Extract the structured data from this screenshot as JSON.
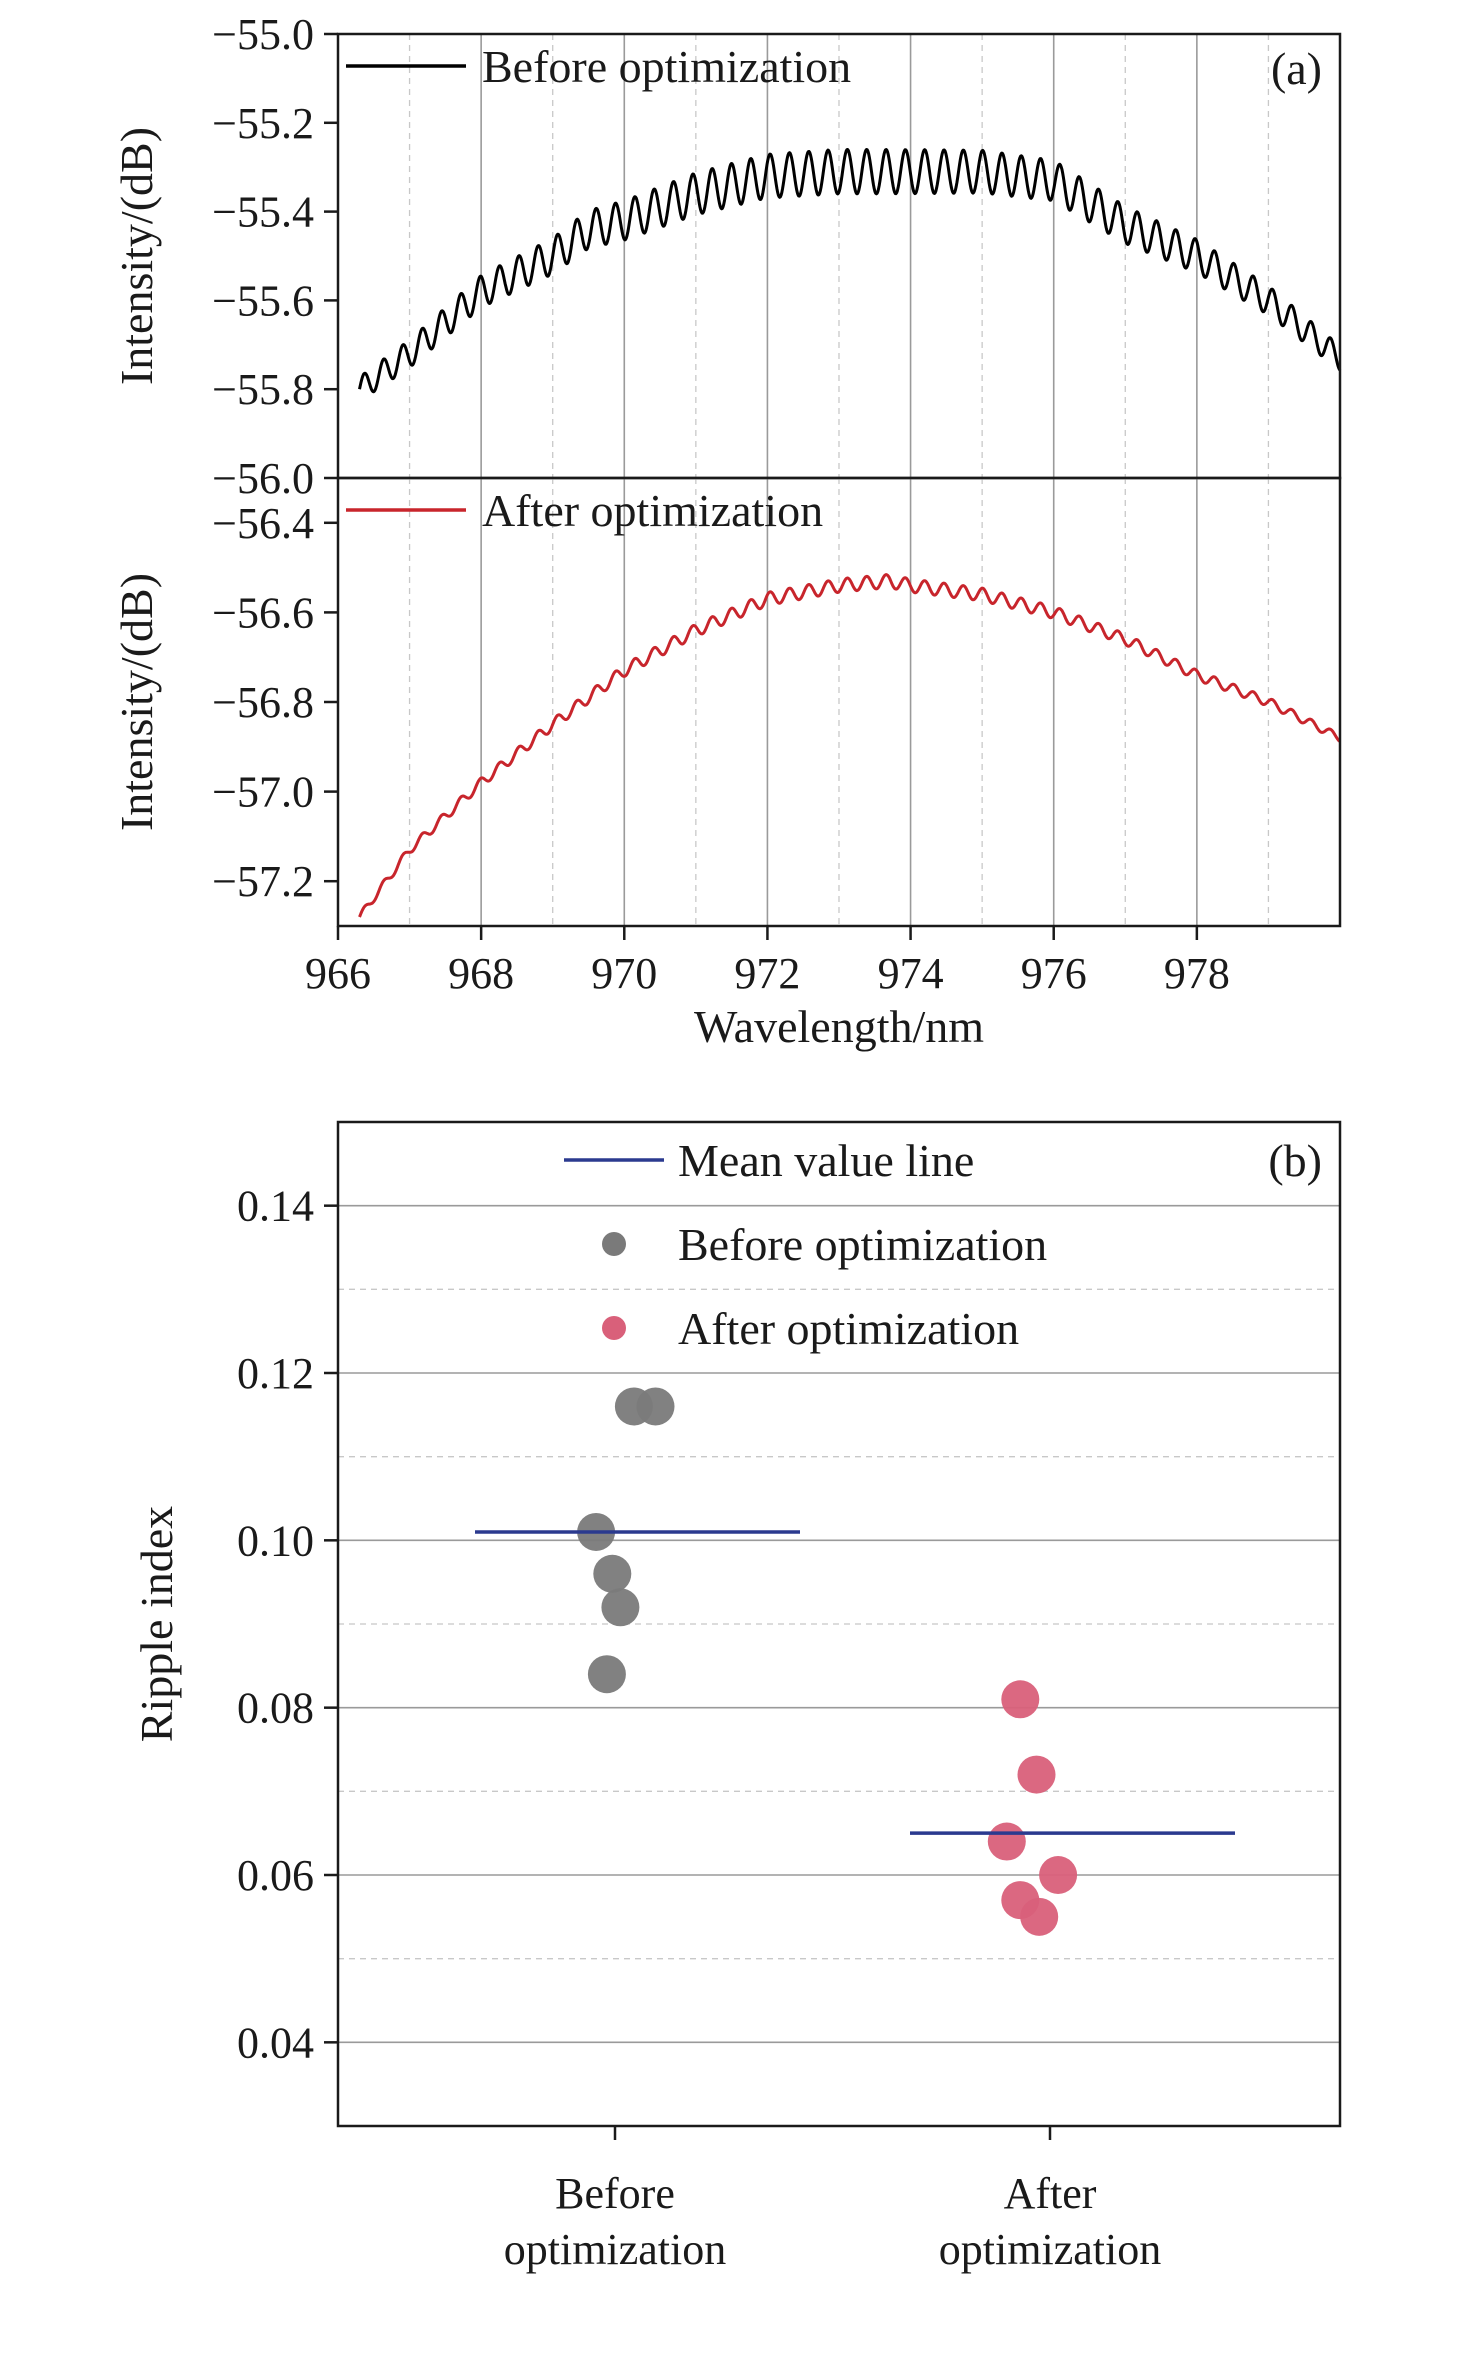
{
  "chart_data": [
    {
      "type": "line",
      "panel_label": "(a)",
      "xlabel": "Wavelength/nm",
      "xlim": [
        966,
        980
      ],
      "x_ticks": [
        "966",
        "968",
        "970",
        "972",
        "974",
        "976",
        "978"
      ],
      "grid": true,
      "subplots": [
        {
          "position": "top",
          "ylabel": "Intensity/(dB)",
          "ylim": [
            -56.0,
            -55.0
          ],
          "y_ticks": [
            "−55.0",
            "−55.2",
            "−55.4",
            "−55.6",
            "−55.8",
            "−56.0"
          ],
          "legend_placement": "top-left",
          "series": [
            {
              "name": "Before optimization",
              "color": "#000000",
              "x": [
                966.3,
                967.0,
                968.0,
                969.0,
                969.5,
                970.0,
                971.0,
                972.0,
                973.0,
                974.0,
                975.0,
                976.0,
                977.0,
                978.0,
                979.0,
                980.0
              ],
              "y": [
                -55.8,
                -55.72,
                -55.58,
                -55.5,
                -55.44,
                -55.42,
                -55.36,
                -55.32,
                -55.31,
                -55.31,
                -55.31,
                -55.33,
                -55.43,
                -55.5,
                -55.6,
                -55.73
              ],
              "ripple_amplitude": 0.05
            }
          ]
        },
        {
          "position": "bottom",
          "ylabel": "Intensity/(dB)",
          "ylim": [
            -57.3,
            -56.3
          ],
          "y_ticks": [
            "−56.4",
            "−56.6",
            "−56.8",
            "−57.0",
            "−57.2"
          ],
          "legend_placement": "top-left",
          "series": [
            {
              "name": "After optimization",
              "color": "#c8252c",
              "x": [
                966.3,
                967.0,
                968.0,
                969.0,
                970.0,
                971.0,
                972.0,
                973.0,
                973.7,
                974.0,
                975.0,
                976.0,
                977.0,
                978.0,
                979.0,
                980.0
              ],
              "y": [
                -57.28,
                -57.13,
                -56.98,
                -56.85,
                -56.73,
                -56.64,
                -56.57,
                -56.54,
                -56.53,
                -56.54,
                -56.56,
                -56.6,
                -56.66,
                -56.74,
                -56.8,
                -56.88
              ],
              "ripple_amplitude": 0.015
            }
          ]
        }
      ]
    },
    {
      "type": "scatter",
      "panel_label": "(b)",
      "ylabel": "Ripple index",
      "ylim": [
        0.03,
        0.15
      ],
      "y_ticks": [
        "0.04",
        "0.06",
        "0.08",
        "0.10",
        "0.12",
        "0.14"
      ],
      "categories": [
        "Before\noptimization",
        "After\noptimization"
      ],
      "grid": true,
      "legend_placement": "top-center",
      "legend": [
        {
          "label": "Mean value line",
          "color": "#2b3a8f"
        },
        {
          "label": "Before optimization",
          "color": "#7a7a7a"
        },
        {
          "label": "After optimization",
          "color": "#d9607a"
        }
      ],
      "series": [
        {
          "name": "Before optimization",
          "color": "#7a7a7a",
          "category_offsets": [
            0.07,
            0.15,
            -0.07,
            -0.01,
            0.02,
            -0.03
          ],
          "values": [
            0.116,
            0.116,
            0.101,
            0.096,
            0.092,
            0.084
          ],
          "mean": 0.101
        },
        {
          "name": "After optimization",
          "color": "#d9607a",
          "category_offsets": [
            -0.11,
            -0.05,
            0.03,
            -0.16,
            -0.11,
            -0.04
          ],
          "values": [
            0.081,
            0.072,
            0.06,
            0.064,
            0.057,
            0.055
          ],
          "mean": 0.065
        }
      ]
    }
  ]
}
